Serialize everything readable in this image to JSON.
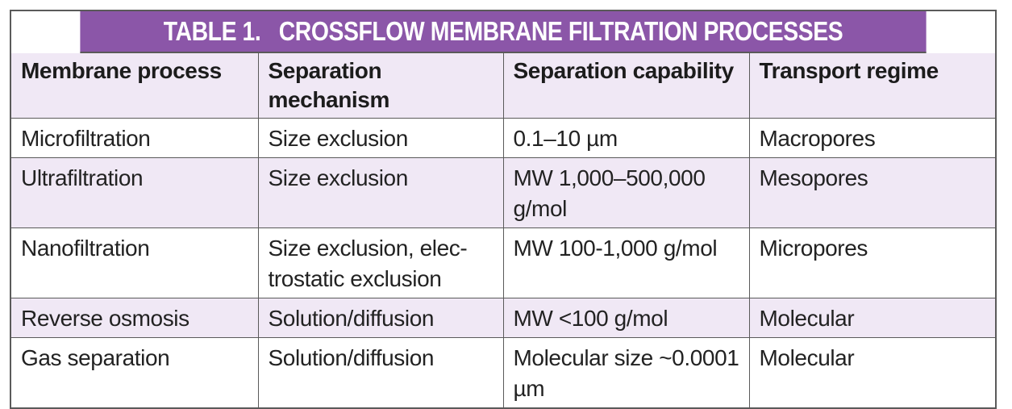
{
  "table": {
    "title": "TABLE 1.   CROSSFLOW MEMBRANE FILTRATION PROCESSES",
    "headers": [
      "Membrane process",
      "Separation mechanism",
      "Separation capability",
      "Transport regime"
    ],
    "rows": [
      [
        "Microfiltration",
        "Size exclusion",
        "0.1–10 µm",
        "Macropores"
      ],
      [
        "Ultrafiltration",
        "Size exclusion",
        "MW 1,000–500,000 g/mol",
        "Mesopores"
      ],
      [
        "Nanofiltration",
        "Size exclusion, elec-trostatic exclusion",
        "MW 100-1,000 g/mol",
        "Micropores"
      ],
      [
        "Reverse osmosis",
        "Solution/diffusion",
        "MW <100 g/mol",
        "Molecular"
      ],
      [
        "Gas separation",
        "Solution/diffusion",
        "Molecular size ~0.0001 µm",
        "Molecular"
      ]
    ],
    "colors": {
      "title_background": "#8b56a8",
      "title_text": "#ffffff",
      "header_background": "#f0e8f5",
      "alternate_row_background": "#f0e8f5",
      "border": "#5a5a5a"
    }
  }
}
